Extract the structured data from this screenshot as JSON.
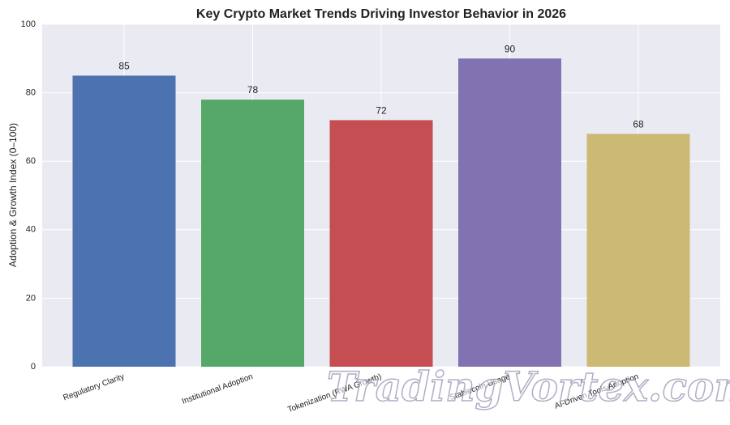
{
  "chart_data": {
    "type": "bar",
    "title": "Key Crypto Market Trends Driving Investor Behavior in 2026",
    "ylabel": "Adoption & Growth Index (0–100)",
    "categories": [
      "Regulatory Clarity",
      "Institutional Adoption",
      "Tokenization (RWA Growth)",
      "Stablecoin Usage",
      "AI-Driven Tools Adoption"
    ],
    "values": [
      85,
      78,
      72,
      90,
      68
    ],
    "colors": [
      "#4c72b0",
      "#55a868",
      "#c44e52",
      "#8172b2",
      "#ccb974"
    ],
    "ylim": [
      0,
      100
    ],
    "yticks": [
      0,
      20,
      40,
      60,
      80,
      100
    ],
    "grid": true,
    "watermark": "TradingVortex.com"
  }
}
